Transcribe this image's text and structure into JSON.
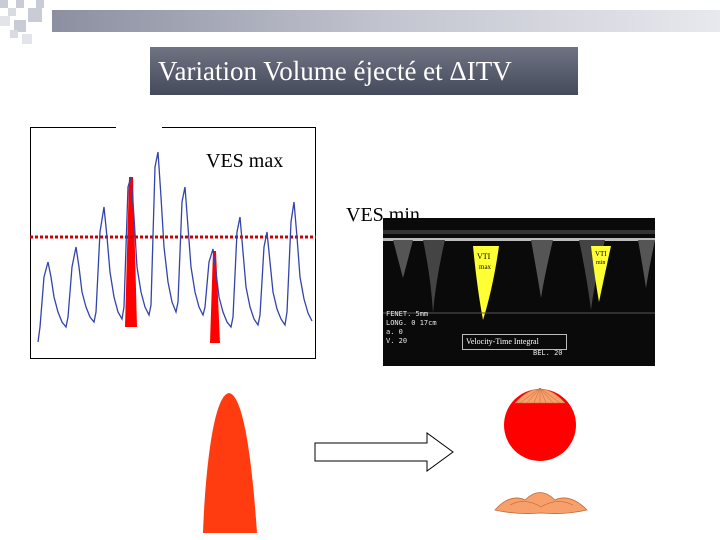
{
  "slide": {
    "title": "Variation Volume éjecté et ΔITV"
  },
  "waveform": {
    "label_max": "VES max",
    "label_min": "VES min"
  },
  "echo": {
    "vti_max_label_1": "VTI",
    "vti_max_label_2": "max",
    "vti_min_label_1": "VTI",
    "vti_min_label_2": "min",
    "vti_caption": "Velocity-Time Integral",
    "readout_1": "FENET. 5mm",
    "readout_2": "LONG. 0 17cm",
    "readout_3": "a. 0",
    "readout_4": "V. 20",
    "readout_5": "BEL. 20"
  },
  "colors": {
    "red": "#ff0000",
    "orange": "#ff3b10",
    "yellow": "#ffff33",
    "wave": "#3344aa"
  }
}
